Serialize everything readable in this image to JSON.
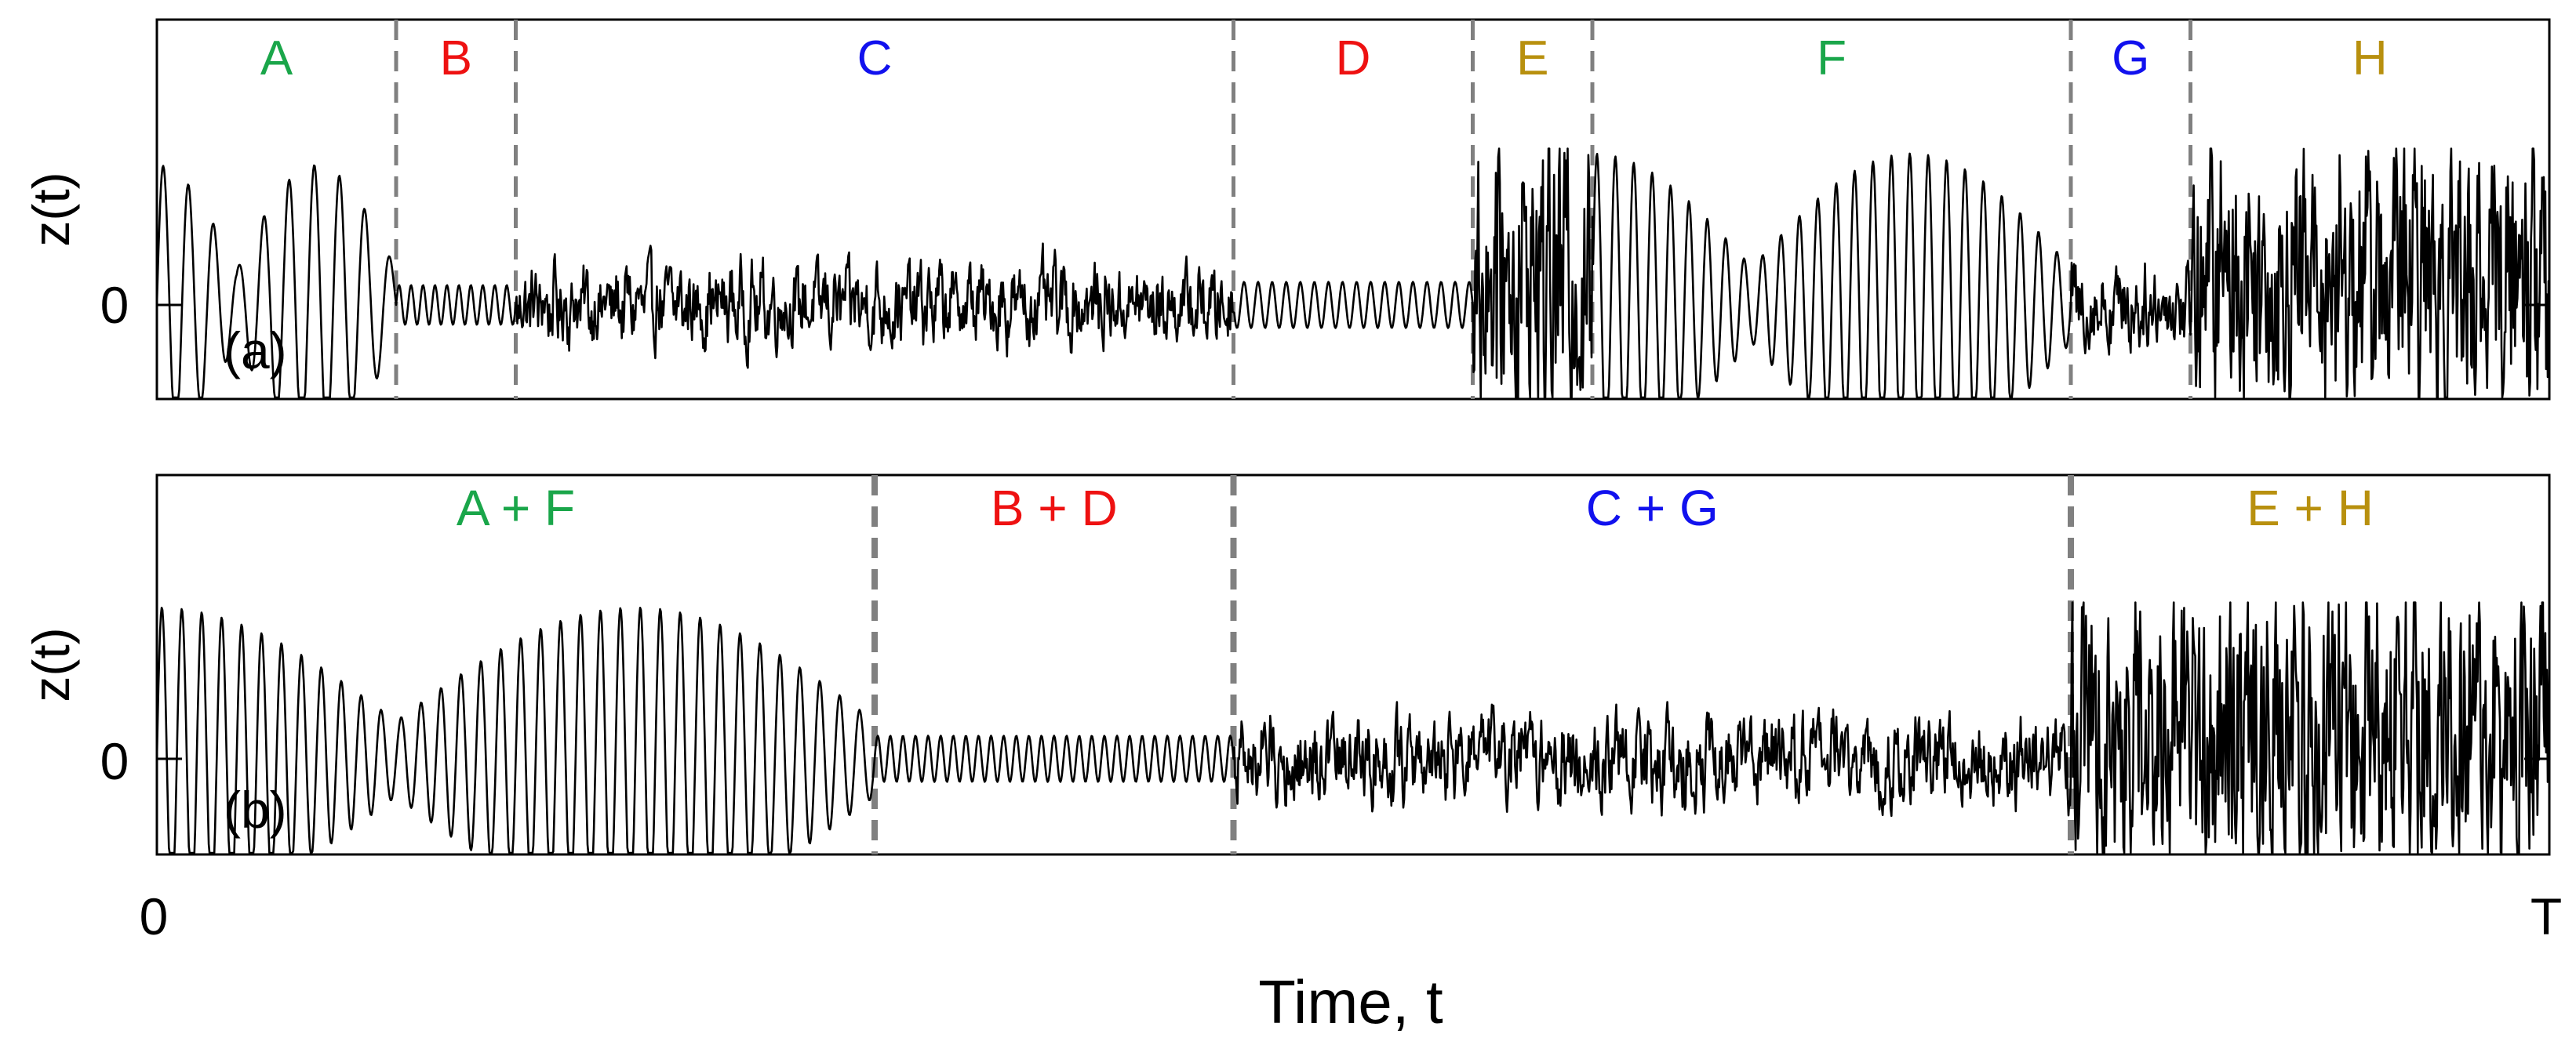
{
  "figure": {
    "xlabel": "Time, t",
    "x_start_label": "0",
    "x_end_label": "T",
    "signal_color": "#000000",
    "boundary_color": "#808080",
    "segment_colors": {
      "green": "#1aa64a",
      "red": "#ee1111",
      "blue": "#1111ee",
      "gold": "#b8900e"
    }
  },
  "chart_data": [
    {
      "type": "line",
      "panel_label": "(a)",
      "ylabel": "z(t)",
      "y_zero_label": "0",
      "xlim": [
        0,
        1
      ],
      "ylim": [
        -1,
        1
      ],
      "grid": false,
      "segments": [
        {
          "label": "A",
          "color": "green",
          "start": 0.0,
          "end": 0.1,
          "kind": "modulated",
          "amp": 0.85,
          "freq": 95
        },
        {
          "label": "B",
          "color": "red",
          "start": 0.1,
          "end": 0.15,
          "kind": "sine",
          "amp": 0.12,
          "freq": 200
        },
        {
          "label": "C",
          "color": "blue",
          "start": 0.15,
          "end": 0.45,
          "kind": "noise",
          "amp": 0.18,
          "freq": 0
        },
        {
          "label": "D",
          "color": "red",
          "start": 0.45,
          "end": 0.55,
          "kind": "sine",
          "amp": 0.14,
          "freq": 170
        },
        {
          "label": "E",
          "color": "gold",
          "start": 0.55,
          "end": 0.6,
          "kind": "chaotic",
          "amp": 0.75,
          "freq": 0
        },
        {
          "label": "F",
          "color": "green",
          "start": 0.6,
          "end": 0.8,
          "kind": "modulated",
          "amp": 0.92,
          "freq": 130
        },
        {
          "label": "G",
          "color": "blue",
          "start": 0.8,
          "end": 0.85,
          "kind": "noise",
          "amp": 0.2,
          "freq": 0
        },
        {
          "label": "H",
          "color": "gold",
          "start": 0.85,
          "end": 1.0,
          "kind": "chaotic",
          "amp": 0.65,
          "freq": 0
        }
      ],
      "boundaries": [
        0.1,
        0.15,
        0.45,
        0.55,
        0.6,
        0.8,
        0.85
      ]
    },
    {
      "type": "line",
      "panel_label": "(b)",
      "ylabel": "z(t)",
      "y_zero_label": "0",
      "xlim": [
        0,
        1
      ],
      "ylim": [
        -1,
        1
      ],
      "grid": false,
      "segments": [
        {
          "label": "A + F",
          "color": "green",
          "start": 0.0,
          "end": 0.3,
          "kind": "modulated",
          "amp": 0.92,
          "freq": 120
        },
        {
          "label": "B + D",
          "color": "red",
          "start": 0.3,
          "end": 0.45,
          "kind": "sine",
          "amp": 0.14,
          "freq": 190
        },
        {
          "label": "C + G",
          "color": "blue",
          "start": 0.45,
          "end": 0.8,
          "kind": "noise",
          "amp": 0.2,
          "freq": 0
        },
        {
          "label": "E + H",
          "color": "gold",
          "start": 0.8,
          "end": 1.0,
          "kind": "chaotic",
          "amp": 0.7,
          "freq": 0
        }
      ],
      "boundaries": [
        0.3,
        0.45,
        0.8
      ]
    }
  ]
}
